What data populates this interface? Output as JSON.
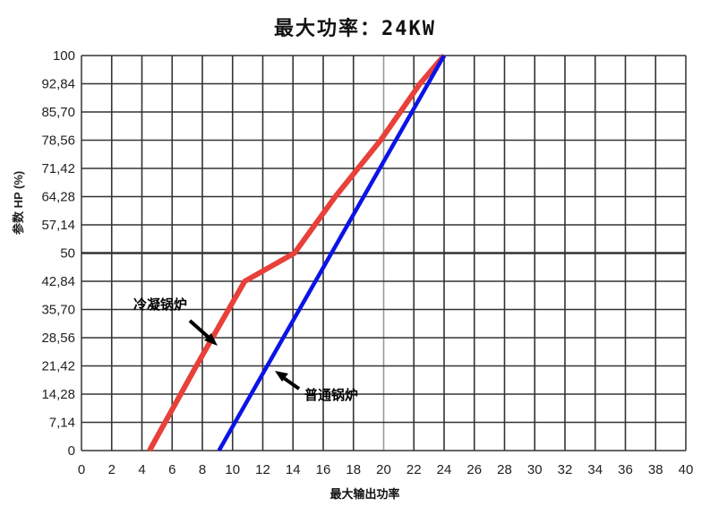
{
  "chart_data": {
    "type": "line",
    "title": "最大功率：24KW",
    "xlabel": "最大输出功率",
    "ylabel": "参数 HP (%)",
    "xlim": [
      0,
      40
    ],
    "ylim": [
      0,
      100
    ],
    "x_ticks": [
      "0",
      "2",
      "4",
      "6",
      "8",
      "10",
      "12",
      "14",
      "16",
      "18",
      "20",
      "22",
      "24",
      "26",
      "28",
      "30",
      "32",
      "34",
      "36",
      "38",
      "40"
    ],
    "y_ticks": [
      "0",
      "7,14",
      "14,28",
      "21,42",
      "28,56",
      "35,70",
      "42,84",
      "50",
      "57,14",
      "64,28",
      "71,42",
      "78,56",
      "85,70",
      "92,84",
      "100"
    ],
    "grid": true,
    "series": [
      {
        "name": "冷凝锅炉",
        "color": "#e8403a",
        "points": [
          [
            4.5,
            0
          ],
          [
            7.6,
            21.42
          ],
          [
            10.8,
            42.84
          ],
          [
            14.1,
            50
          ],
          [
            16.8,
            64.28
          ],
          [
            19.8,
            78.56
          ],
          [
            22.4,
            92.84
          ],
          [
            24,
            100
          ]
        ]
      },
      {
        "name": "普通锅炉",
        "color": "#0a14e6",
        "points": [
          [
            9.1,
            0
          ],
          [
            24,
            100
          ]
        ]
      }
    ],
    "annotations": [
      {
        "text": "冷凝锅炉",
        "points_to": "red series near (8.8, 28)"
      },
      {
        "text": "普通锅炉",
        "points_to": "blue series near (12.5, 20)"
      }
    ]
  }
}
